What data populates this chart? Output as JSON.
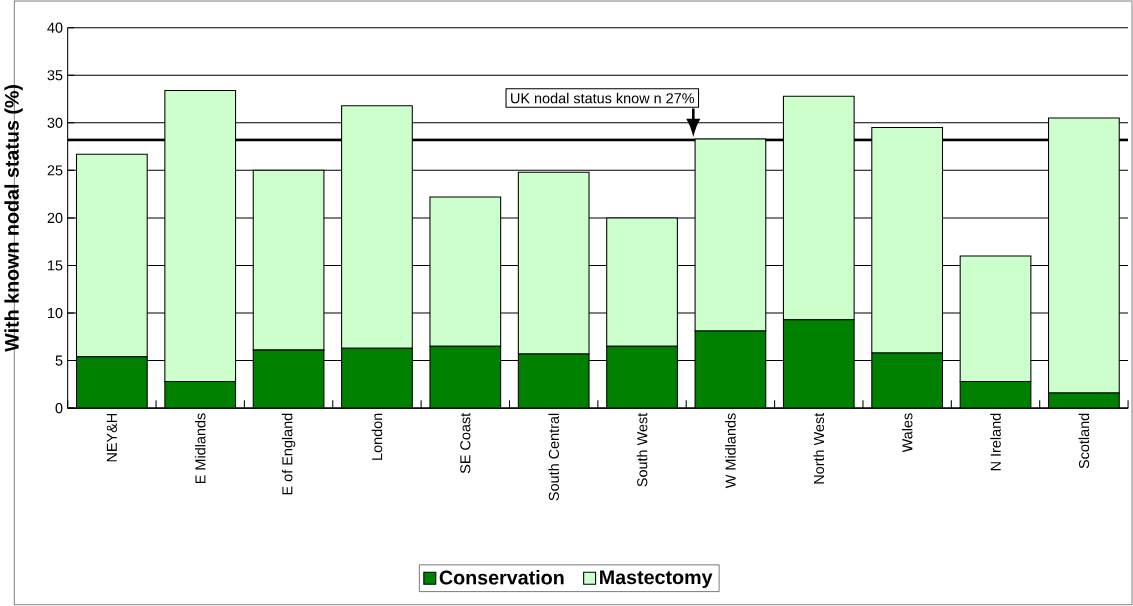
{
  "chart_data": {
    "type": "bar",
    "stacked": true,
    "ylabel": "With known nodal status (%)",
    "categories": [
      "NEY&H",
      "E Midlands",
      "E of England",
      "London",
      "SE Coast",
      "South Central",
      "South West",
      "W Midlands",
      "North West",
      "Wales",
      "N Ireland",
      "Scotland"
    ],
    "series": [
      {
        "name": "Conservation",
        "color": "#008000",
        "values": [
          5.4,
          2.8,
          6.1,
          6.3,
          6.5,
          5.7,
          6.5,
          8.1,
          9.3,
          5.8,
          2.8,
          1.6
        ]
      },
      {
        "name": "Mastectomy",
        "color": "#ccffcc",
        "values": [
          21.3,
          30.6,
          18.9,
          25.5,
          15.7,
          19.1,
          13.5,
          20.2,
          23.5,
          23.7,
          13.2,
          28.9
        ]
      }
    ],
    "ylim": [
      0,
      40
    ],
    "yticks": [
      0,
      5,
      10,
      15,
      20,
      25,
      30,
      35,
      40
    ],
    "grid": "y",
    "legend": "bottom",
    "ref_lines": [
      {
        "axis": "y",
        "value": 28.2,
        "label": "UK nodal status know n 27%",
        "color": "#000000"
      }
    ]
  }
}
